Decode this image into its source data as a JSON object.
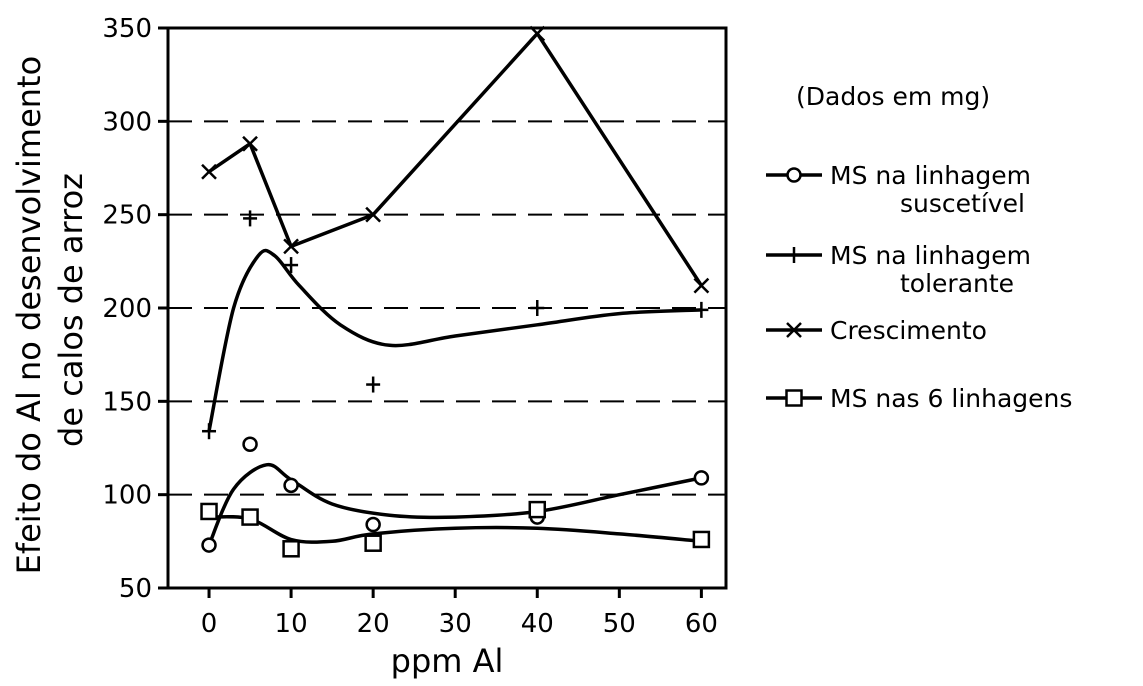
{
  "chart_data": {
    "type": "line",
    "title": "",
    "xlabel": "ppm Al",
    "ylabel": [
      "Efeito do Al no desenvolvimento",
      "de calos de arroz"
    ],
    "xlim": [
      -5,
      63
    ],
    "ylim": [
      50,
      350
    ],
    "x_ticks": [
      0,
      10,
      20,
      30,
      40,
      50,
      60
    ],
    "y_ticks": [
      50,
      100,
      150,
      200,
      250,
      300,
      350
    ],
    "grid": "dashed horizontal lines at 100, 150, 200, 250, 300",
    "legend_placement": "right",
    "legend_note": "(Dados em mg)",
    "series": [
      {
        "name": [
          "MS na linhagem",
          "suscetível"
        ],
        "marker": "circle",
        "x": [
          0,
          5,
          10,
          20,
          40,
          60
        ],
        "values": [
          73,
          127,
          105,
          84,
          88,
          109
        ],
        "curve": [
          [
            0,
            73
          ],
          [
            3,
            103
          ],
          [
            7,
            116
          ],
          [
            10,
            108
          ],
          [
            15,
            95
          ],
          [
            22,
            89
          ],
          [
            30,
            88
          ],
          [
            40,
            91
          ],
          [
            50,
            100
          ],
          [
            60,
            109
          ]
        ]
      },
      {
        "name": [
          "MS na linhagem",
          "tolerante"
        ],
        "marker": "plus",
        "x": [
          0,
          5,
          10,
          20,
          40,
          60
        ],
        "values": [
          134,
          248,
          223,
          159,
          200,
          199
        ],
        "curve": [
          [
            0,
            134
          ],
          [
            3,
            200
          ],
          [
            6,
            228
          ],
          [
            8,
            228
          ],
          [
            11,
            212
          ],
          [
            16,
            191
          ],
          [
            22,
            180
          ],
          [
            30,
            185
          ],
          [
            40,
            191
          ],
          [
            50,
            197
          ],
          [
            60,
            199
          ]
        ]
      },
      {
        "name": [
          "Crescimento"
        ],
        "marker": "x",
        "x": [
          0,
          5,
          10,
          20,
          40,
          60
        ],
        "values": [
          273,
          288,
          233,
          250,
          347,
          212
        ],
        "curve": [
          [
            0,
            273
          ],
          [
            5,
            288
          ],
          [
            10,
            233
          ],
          [
            20,
            250
          ],
          [
            40,
            347
          ],
          [
            60,
            212
          ]
        ],
        "straight": true
      },
      {
        "name": [
          "MS nas 6 linhagens"
        ],
        "marker": "square",
        "x": [
          0,
          5,
          10,
          20,
          40,
          60
        ],
        "values": [
          91,
          88,
          71,
          74,
          92,
          76
        ],
        "curve": [
          [
            0,
            88
          ],
          [
            5,
            87
          ],
          [
            10,
            76
          ],
          [
            15,
            75
          ],
          [
            20,
            79
          ],
          [
            30,
            82
          ],
          [
            40,
            82
          ],
          [
            50,
            79
          ],
          [
            60,
            75
          ]
        ]
      }
    ]
  }
}
